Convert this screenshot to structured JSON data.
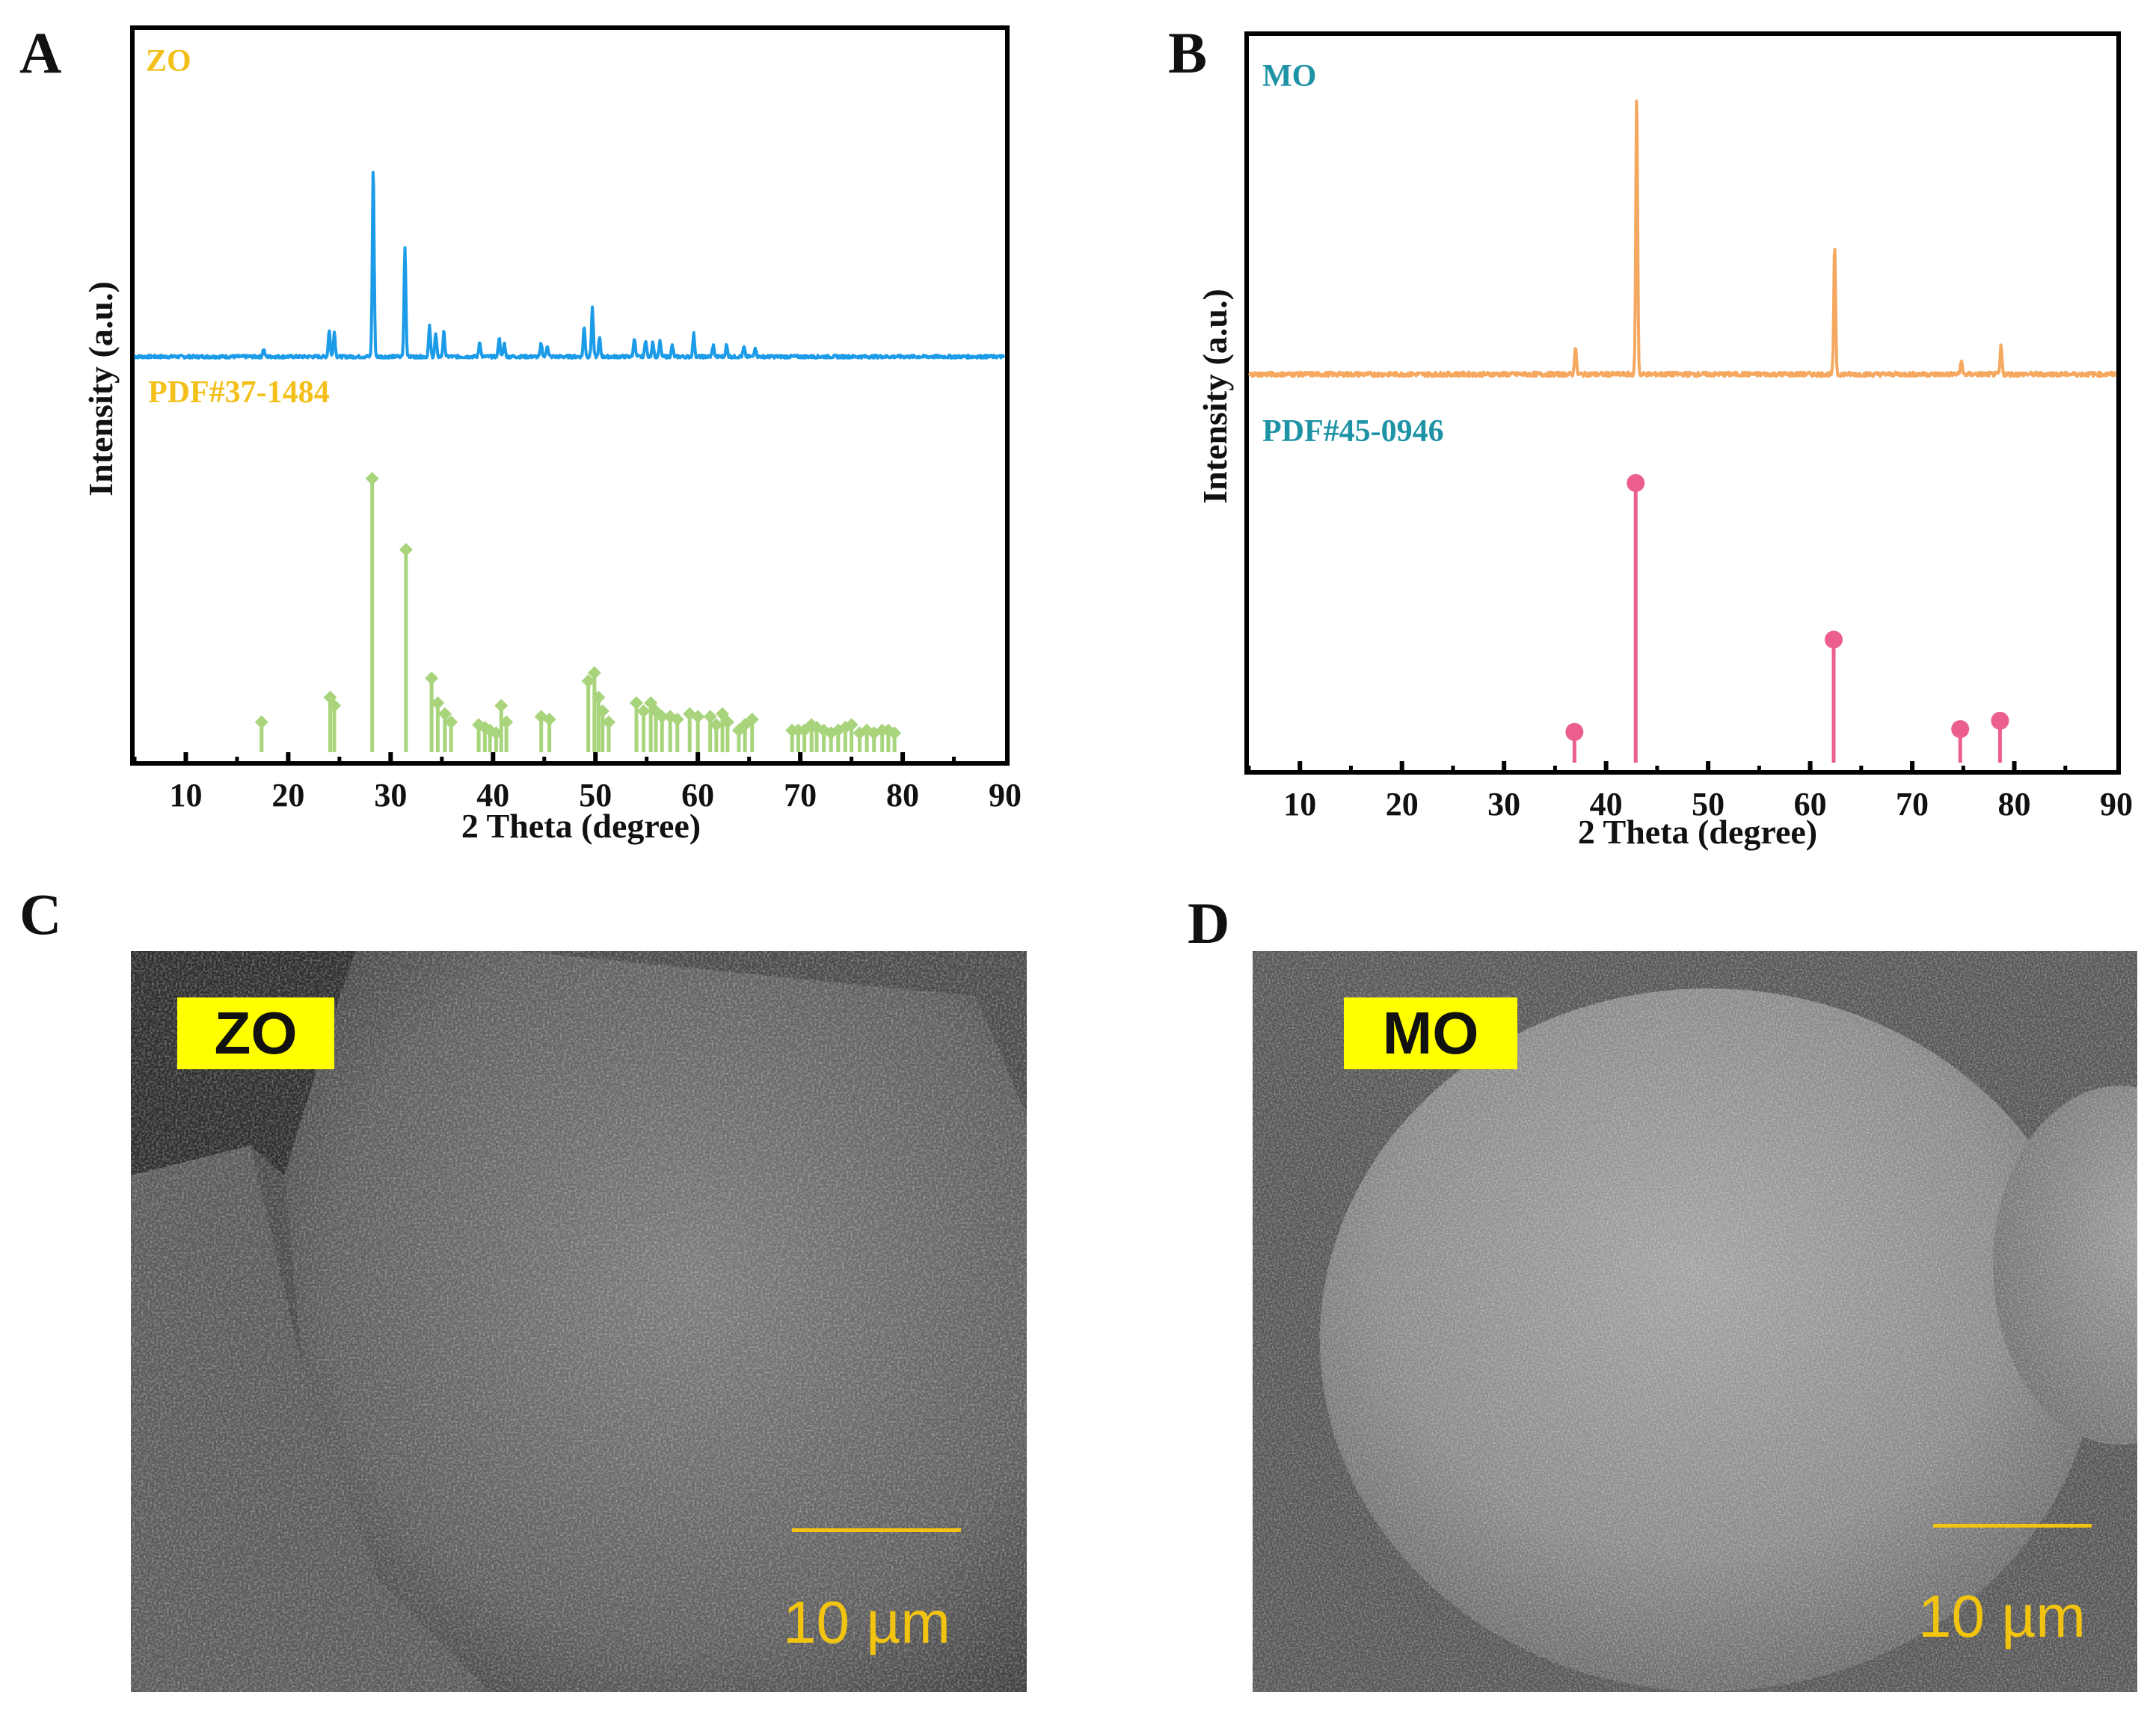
{
  "panels": {
    "a": {
      "letter": "A"
    },
    "b": {
      "letter": "B"
    },
    "c": {
      "letter": "C",
      "label": "ZO",
      "scale_text": "10 µm"
    },
    "d": {
      "letter": "D",
      "label": "MO",
      "scale_text": "10 µm"
    }
  },
  "colors": {
    "zo_pattern": "#1c9be8",
    "zo_reference": "#a8d47c",
    "zo_label": "#f3c01a",
    "mo_pattern": "#f5a860",
    "mo_reference": "#ec5e8e",
    "mo_label": "#1e93a6",
    "scale": "#f2c40f",
    "label_bg": "#ffff00"
  },
  "chart_data": [
    {
      "type": "line",
      "panel": "A",
      "xlabel": "2 Theta (degree)",
      "ylabel": "Intensity (a.u.)",
      "xlim": [
        5,
        90
      ],
      "xticks": [
        10,
        20,
        30,
        40,
        50,
        60,
        70,
        80,
        90
      ],
      "yticks": [],
      "grid": false,
      "series": [
        {
          "name": "ZO",
          "kind": "pattern",
          "color": "#1c9be8",
          "baseline": 2,
          "peaks": [
            [
              17.6,
              4
            ],
            [
              24.0,
              14
            ],
            [
              24.5,
              13
            ],
            [
              28.3,
              100
            ],
            [
              31.4,
              58
            ],
            [
              33.8,
              16
            ],
            [
              34.4,
              12
            ],
            [
              35.2,
              13
            ],
            [
              38.7,
              8
            ],
            [
              40.6,
              10
            ],
            [
              41.1,
              7
            ],
            [
              44.7,
              7
            ],
            [
              45.3,
              6
            ],
            [
              48.9,
              16
            ],
            [
              49.7,
              26
            ],
            [
              50.4,
              10
            ],
            [
              53.8,
              10
            ],
            [
              54.9,
              9
            ],
            [
              55.6,
              8
            ],
            [
              56.3,
              8
            ],
            [
              57.5,
              6
            ],
            [
              59.6,
              12
            ],
            [
              61.5,
              6
            ],
            [
              62.8,
              6
            ],
            [
              64.5,
              5
            ],
            [
              65.6,
              5
            ]
          ]
        },
        {
          "name": "PDF#37-1484",
          "kind": "reference",
          "color": "#a8d47c",
          "peaks": [
            [
              17.4,
              11
            ],
            [
              24.1,
              20
            ],
            [
              24.5,
              17
            ],
            [
              28.2,
              100
            ],
            [
              31.5,
              74
            ],
            [
              34.0,
              27
            ],
            [
              34.6,
              18
            ],
            [
              35.3,
              14
            ],
            [
              35.9,
              11
            ],
            [
              38.6,
              10
            ],
            [
              39.2,
              9
            ],
            [
              39.7,
              8
            ],
            [
              40.3,
              7
            ],
            [
              40.8,
              17
            ],
            [
              41.3,
              11
            ],
            [
              44.7,
              13
            ],
            [
              45.5,
              12
            ],
            [
              49.3,
              26
            ],
            [
              49.9,
              29
            ],
            [
              50.3,
              20
            ],
            [
              50.7,
              15
            ],
            [
              51.3,
              11
            ],
            [
              54.0,
              18
            ],
            [
              54.7,
              15
            ],
            [
              55.4,
              18
            ],
            [
              55.9,
              15
            ],
            [
              56.5,
              13
            ],
            [
              57.3,
              13
            ],
            [
              58.0,
              12
            ],
            [
              59.2,
              14
            ],
            [
              60.0,
              13
            ],
            [
              61.2,
              13
            ],
            [
              61.8,
              10
            ],
            [
              62.4,
              14
            ],
            [
              62.9,
              11
            ],
            [
              64.0,
              8
            ],
            [
              64.6,
              10
            ],
            [
              65.3,
              12
            ],
            [
              69.2,
              8
            ],
            [
              69.8,
              8
            ],
            [
              70.4,
              8
            ],
            [
              71.1,
              10
            ],
            [
              71.6,
              9
            ],
            [
              72.3,
              8
            ],
            [
              73.0,
              7
            ],
            [
              73.7,
              8
            ],
            [
              74.4,
              9
            ],
            [
              75.0,
              10
            ],
            [
              75.8,
              7
            ],
            [
              76.5,
              8
            ],
            [
              77.2,
              7
            ],
            [
              78.0,
              8
            ],
            [
              78.6,
              8
            ],
            [
              79.2,
              7
            ]
          ]
        }
      ],
      "annotations": [
        "ZO",
        "PDF#37-1484"
      ]
    },
    {
      "type": "line",
      "panel": "B",
      "xlabel": "2 Theta (degree)",
      "ylabel": "Intensity (a.u.)",
      "xlim": [
        5,
        90
      ],
      "xticks": [
        10,
        20,
        30,
        40,
        50,
        60,
        70,
        80,
        90
      ],
      "yticks": [],
      "grid": false,
      "series": [
        {
          "name": "MO",
          "kind": "pattern",
          "color": "#f5a860",
          "baseline": 2,
          "peaks": [
            [
              37.0,
              10
            ],
            [
              43.0,
              100
            ],
            [
              62.4,
              46
            ],
            [
              74.8,
              5
            ],
            [
              78.7,
              10
            ]
          ]
        },
        {
          "name": "PDF#45-0946",
          "kind": "reference",
          "color": "#ec5e8e",
          "peaks": [
            [
              36.9,
              11
            ],
            [
              42.9,
              100
            ],
            [
              62.3,
              44
            ],
            [
              74.7,
              12
            ],
            [
              78.6,
              15
            ]
          ]
        }
      ],
      "annotations": [
        "MO",
        "PDF#45-0946"
      ]
    }
  ]
}
